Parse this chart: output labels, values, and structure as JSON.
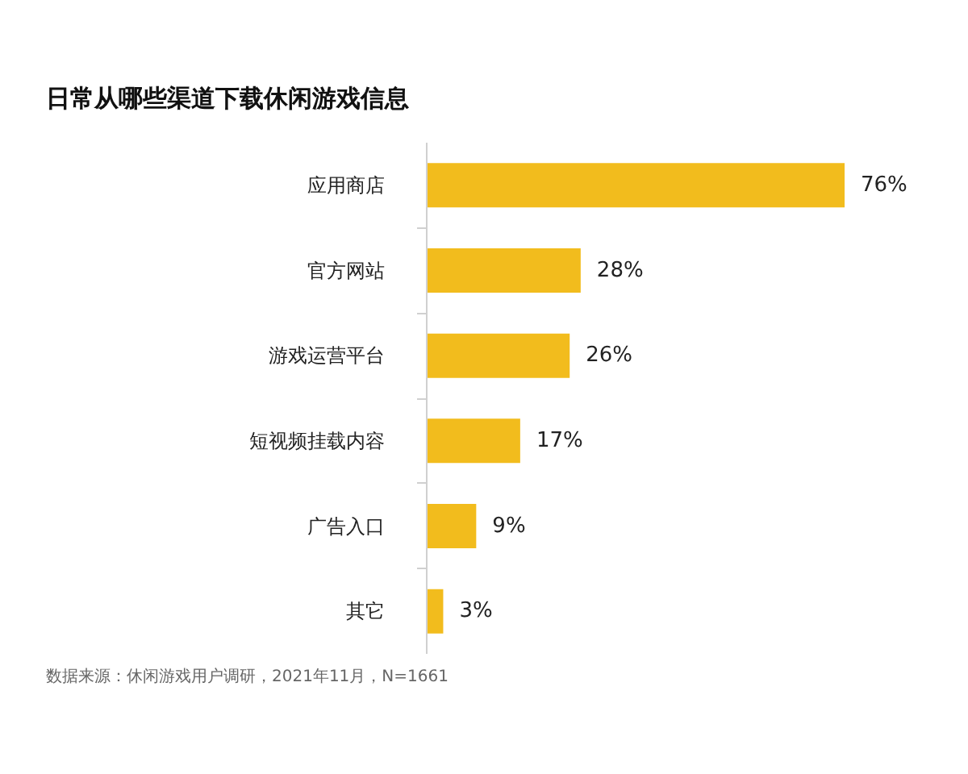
{
  "chart_data": {
    "type": "bar",
    "orientation": "horizontal",
    "title": "日常从哪些渠道下载休闲游戏信息",
    "categories": [
      "应用商店",
      "官方网站",
      "游戏运营平台",
      "短视频挂载内容",
      "广告入口",
      "其它"
    ],
    "values": [
      76,
      28,
      26,
      17,
      9,
      3
    ],
    "value_labels": [
      "76%",
      "28%",
      "26%",
      "17%",
      "9%",
      "3%"
    ],
    "color": "#f2bc1d",
    "annotations": [
      "数据来源：休闲游戏用户调研，2021年11月，N=1661"
    ]
  }
}
